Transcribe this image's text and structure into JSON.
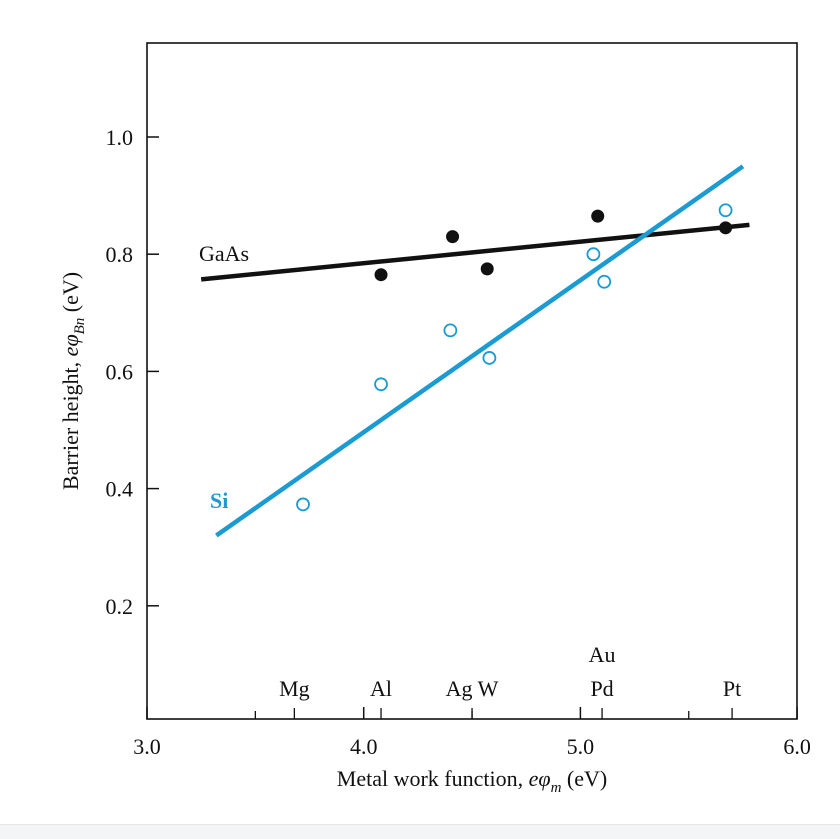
{
  "chart_data": {
    "type": "scatter",
    "xlabel_prefix": "Metal work function, ",
    "xlabel_symbol": "eφ",
    "xlabel_sub": "m",
    "xlabel_suffix": " (eV)",
    "ylabel_prefix": "Barrier height, ",
    "ylabel_symbol": "eφ",
    "ylabel_sub": "Bn",
    "ylabel_suffix": " (eV)",
    "xlim": [
      3.0,
      6.0
    ],
    "ylim": [
      0.0,
      1.15
    ],
    "x_ticks": [
      3.0,
      4.0,
      5.0,
      6.0
    ],
    "x_tick_labels": [
      "3.0",
      "4.0",
      "5.0",
      "6.0"
    ],
    "x_minor_ticks": [
      3.5,
      4.5,
      5.5
    ],
    "y_ticks": [
      0.2,
      0.4,
      0.6,
      0.8,
      1.0
    ],
    "y_tick_labels": [
      "0.2",
      "0.4",
      "0.6",
      "0.8",
      "1.0"
    ],
    "metals": [
      {
        "label": "Mg",
        "x": 3.68
      },
      {
        "label": "Al",
        "x": 4.08
      },
      {
        "label": "Ag W",
        "x": 4.5
      },
      {
        "label": "Au",
        "x": 5.1,
        "row": 2
      },
      {
        "label": "Pd",
        "x": 5.1
      },
      {
        "label": "Pt",
        "x": 5.7
      }
    ],
    "series": [
      {
        "name": "GaAs",
        "color": "#111111",
        "marker": "filled-circle",
        "points": [
          {
            "x": 4.08,
            "y": 0.765
          },
          {
            "x": 4.41,
            "y": 0.83
          },
          {
            "x": 4.57,
            "y": 0.775
          },
          {
            "x": 5.08,
            "y": 0.865
          },
          {
            "x": 5.67,
            "y": 0.845
          }
        ],
        "fit": {
          "x": [
            3.25,
            5.78
          ],
          "y": [
            0.757,
            0.85
          ]
        }
      },
      {
        "name": "Si",
        "color": "#1b9bd1",
        "marker": "open-circle",
        "points": [
          {
            "x": 3.72,
            "y": 0.373
          },
          {
            "x": 4.08,
            "y": 0.578
          },
          {
            "x": 4.4,
            "y": 0.67
          },
          {
            "x": 4.58,
            "y": 0.623
          },
          {
            "x": 5.06,
            "y": 0.8
          },
          {
            "x": 5.11,
            "y": 0.753
          },
          {
            "x": 5.67,
            "y": 0.875
          }
        ],
        "fit": {
          "x": [
            3.32,
            5.75
          ],
          "y": [
            0.32,
            0.95
          ]
        }
      }
    ],
    "legend": "inline-labels"
  },
  "colors": {
    "axis": "#111111",
    "gaas": "#111111",
    "si": "#1b9bd1"
  }
}
